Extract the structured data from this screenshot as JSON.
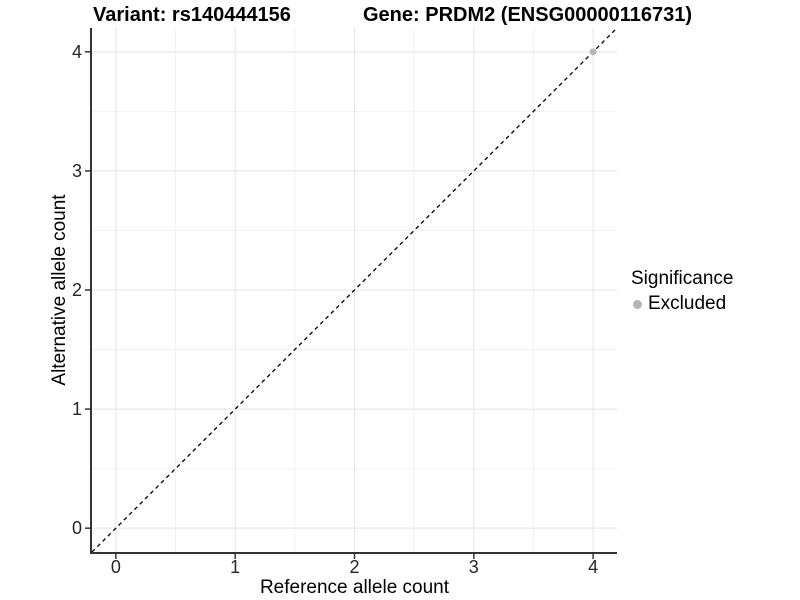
{
  "header": {
    "title_left": "Variant: rs140444156",
    "title_right": "Gene: PRDM2 (ENSG00000116731)"
  },
  "chart_data": {
    "type": "scatter",
    "title_left": "Variant: rs140444156",
    "title_right": "Gene: PRDM2 (ENSG00000116731)",
    "xlabel": "Reference allele count",
    "ylabel": "Alternative allele count",
    "xlim": [
      -0.2,
      4.2
    ],
    "ylim": [
      -0.2,
      4.2
    ],
    "x_ticks": [
      0,
      1,
      2,
      3,
      4
    ],
    "y_ticks": [
      0,
      1,
      2,
      3,
      4
    ],
    "x_minor_ticks": [
      0.5,
      1.5,
      2.5,
      3.5
    ],
    "y_minor_ticks": [
      0.5,
      1.5,
      2.5,
      3.5
    ],
    "grid": "major and minor, light gray on white",
    "reference_line": {
      "kind": "identity",
      "slope": 1,
      "intercept": 0,
      "style": "dashed",
      "color": "#000000"
    },
    "points": [
      {
        "x": 4,
        "y": 4,
        "series": "Excluded"
      }
    ],
    "series": [
      {
        "name": "Excluded",
        "color": "#b5b5b5"
      }
    ],
    "legend": {
      "title": "Significance",
      "position": "right",
      "items": [
        {
          "label": "Excluded",
          "color": "#b5b5b5"
        }
      ]
    }
  },
  "colors": {
    "background": "#ffffff",
    "grid_major": "#e4e4e4",
    "grid_minor": "#f2f2f2",
    "axis_line": "#333333",
    "tick_mark": "#333333",
    "tick_label": "#262626",
    "point_excluded": "#b5b5b5",
    "reference_line": "#000000"
  }
}
